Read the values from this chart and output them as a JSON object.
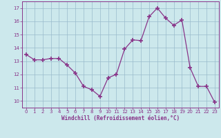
{
  "x": [
    0,
    1,
    2,
    3,
    4,
    5,
    6,
    7,
    8,
    9,
    10,
    11,
    12,
    13,
    14,
    15,
    16,
    17,
    18,
    19,
    20,
    21,
    22,
    23
  ],
  "y": [
    13.5,
    13.1,
    13.1,
    13.2,
    13.2,
    12.7,
    12.1,
    11.1,
    10.85,
    10.35,
    11.75,
    12.0,
    13.9,
    14.6,
    14.55,
    16.35,
    17.0,
    16.25,
    15.7,
    16.1,
    12.5,
    11.1,
    11.1,
    9.9
  ],
  "ylim": [
    9.5,
    17.5
  ],
  "yticks": [
    10,
    11,
    12,
    13,
    14,
    15,
    16,
    17
  ],
  "xticks": [
    0,
    1,
    2,
    3,
    4,
    5,
    6,
    7,
    8,
    9,
    10,
    11,
    12,
    13,
    14,
    15,
    16,
    17,
    18,
    19,
    20,
    21,
    22,
    23
  ],
  "xlabel": "Windchill (Refroidissement éolien,°C)",
  "line_color": "#883388",
  "marker_color": "#883388",
  "bg_color": "#cce8ec",
  "grid_color": "#99bbcc",
  "xlabel_color": "#883388",
  "tick_color": "#883388",
  "spine_color": "#883388"
}
